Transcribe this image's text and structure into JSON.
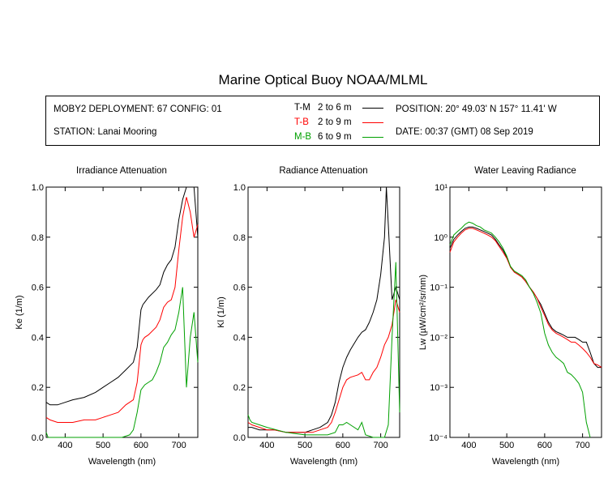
{
  "title": "Marine Optical Buoy NOAA/MLML",
  "info": {
    "deployment": "MOBY2 DEPLOYMENT: 67 CONFIG: 01",
    "station": "STATION: Lanai Mooring",
    "position": "POSITION: 20° 49.03' N   157° 11.41' W",
    "date": "DATE: 00:37 (GMT) 08 Sep 2019",
    "legend": [
      {
        "code": "T-M",
        "range": "2 to 6  m",
        "color": "#000000"
      },
      {
        "code": "T-B",
        "range": "2 to 9  m",
        "color": "#ff0000"
      },
      {
        "code": "M-B",
        "range": "6 to 9  m",
        "color": "#00a000"
      }
    ]
  },
  "chart_data": [
    {
      "type": "line",
      "title": "Irradiance Attenuation",
      "xlabel": "Wavelength (nm)",
      "ylabel": "Ke  (1/m)",
      "xlim": [
        350,
        750
      ],
      "ylim": [
        0,
        1
      ],
      "xticks": [
        "400",
        "500",
        "600",
        "700"
      ],
      "yticks": [
        "0.0",
        "0.2",
        "0.4",
        "0.6",
        "0.8",
        "1.0"
      ],
      "series": [
        {
          "code": "T-M",
          "color": "#000000",
          "x": [
            350,
            360,
            380,
            400,
            420,
            450,
            480,
            500,
            520,
            540,
            560,
            580,
            590,
            600,
            605,
            610,
            620,
            640,
            650,
            660,
            670,
            680,
            690,
            700,
            710,
            720,
            730,
            740,
            750
          ],
          "y": [
            0.14,
            0.13,
            0.13,
            0.14,
            0.15,
            0.16,
            0.18,
            0.2,
            0.22,
            0.24,
            0.27,
            0.3,
            0.36,
            0.51,
            0.53,
            0.54,
            0.56,
            0.59,
            0.61,
            0.66,
            0.69,
            0.71,
            0.76,
            0.87,
            0.95,
            1.0,
            1.0,
            1.0,
            0.8
          ]
        },
        {
          "code": "T-B",
          "color": "#ff0000",
          "x": [
            350,
            360,
            380,
            400,
            420,
            450,
            480,
            500,
            520,
            540,
            560,
            580,
            590,
            600,
            605,
            610,
            620,
            640,
            650,
            660,
            670,
            680,
            690,
            700,
            710,
            720,
            730,
            740,
            750
          ],
          "y": [
            0.08,
            0.07,
            0.06,
            0.06,
            0.06,
            0.07,
            0.07,
            0.08,
            0.09,
            0.1,
            0.13,
            0.15,
            0.22,
            0.37,
            0.39,
            0.4,
            0.41,
            0.44,
            0.47,
            0.52,
            0.54,
            0.55,
            0.6,
            0.75,
            0.88,
            0.96,
            0.9,
            0.8,
            0.85
          ]
        },
        {
          "code": "M-B",
          "color": "#00a000",
          "x": [
            350,
            355,
            360,
            370,
            380,
            400,
            450,
            500,
            530,
            550,
            570,
            580,
            590,
            600,
            610,
            620,
            630,
            640,
            650,
            660,
            670,
            680,
            690,
            700,
            710,
            720,
            730,
            740,
            750
          ],
          "y": [
            0.02,
            0.0,
            0.0,
            0.0,
            0.0,
            0.0,
            0.0,
            0.0,
            0.0,
            0.0,
            0.01,
            0.03,
            0.1,
            0.19,
            0.21,
            0.22,
            0.23,
            0.26,
            0.3,
            0.36,
            0.38,
            0.41,
            0.43,
            0.5,
            0.6,
            0.2,
            0.4,
            0.5,
            0.3
          ]
        }
      ]
    },
    {
      "type": "line",
      "title": "Radiance Attenuation",
      "xlabel": "Wavelength (nm)",
      "ylabel": "Kl  (1/m)",
      "xlim": [
        350,
        750
      ],
      "ylim": [
        0,
        1
      ],
      "xticks": [
        "400",
        "500",
        "600",
        "700"
      ],
      "yticks": [
        "0.0",
        "0.2",
        "0.4",
        "0.6",
        "0.8",
        "1.0"
      ],
      "series": [
        {
          "code": "T-M",
          "color": "#000000",
          "x": [
            350,
            360,
            380,
            400,
            420,
            450,
            480,
            500,
            520,
            540,
            560,
            570,
            580,
            590,
            600,
            610,
            620,
            640,
            650,
            660,
            670,
            680,
            690,
            700,
            710,
            715,
            720,
            730,
            740,
            750
          ],
          "y": [
            0.04,
            0.04,
            0.03,
            0.03,
            0.03,
            0.02,
            0.02,
            0.02,
            0.03,
            0.04,
            0.06,
            0.09,
            0.14,
            0.22,
            0.28,
            0.32,
            0.35,
            0.4,
            0.42,
            0.43,
            0.46,
            0.5,
            0.55,
            0.65,
            0.8,
            1.0,
            0.85,
            0.55,
            0.6,
            0.55
          ]
        },
        {
          "code": "T-B",
          "color": "#ff0000",
          "x": [
            350,
            360,
            380,
            400,
            420,
            450,
            480,
            500,
            520,
            540,
            560,
            570,
            580,
            590,
            600,
            610,
            620,
            640,
            650,
            660,
            670,
            680,
            690,
            700,
            710,
            720,
            730,
            740,
            750
          ],
          "y": [
            0.06,
            0.05,
            0.04,
            0.03,
            0.03,
            0.02,
            0.02,
            0.02,
            0.02,
            0.03,
            0.04,
            0.06,
            0.1,
            0.15,
            0.2,
            0.23,
            0.24,
            0.25,
            0.26,
            0.23,
            0.23,
            0.26,
            0.28,
            0.32,
            0.37,
            0.4,
            0.45,
            0.55,
            0.5
          ]
        },
        {
          "code": "M-B",
          "color": "#00a000",
          "x": [
            350,
            355,
            360,
            380,
            400,
            450,
            500,
            520,
            540,
            560,
            580,
            590,
            600,
            610,
            620,
            640,
            650,
            660,
            680,
            700,
            710,
            720,
            730,
            740,
            750
          ],
          "y": [
            0.09,
            0.07,
            0.06,
            0.05,
            0.04,
            0.02,
            0.01,
            0.01,
            0.01,
            0.01,
            0.02,
            0.05,
            0.05,
            0.06,
            0.05,
            0.03,
            0.06,
            0.01,
            0.0,
            0.0,
            0.0,
            0.05,
            0.4,
            0.7,
            0.1
          ]
        }
      ]
    },
    {
      "type": "line",
      "title": "Water Leaving Radiance",
      "xlabel": "Wavelength (nm)",
      "ylabel": "Lw  (µW/cm²/sr/nm)",
      "xlim": [
        350,
        750
      ],
      "ylim": [
        0.0001,
        10
      ],
      "yscale": "log",
      "xticks": [
        "400",
        "500",
        "600",
        "700"
      ],
      "yticks": [
        "10⁻⁴",
        "10⁻³",
        "10⁻²",
        "10⁻¹",
        "10⁰",
        "10¹"
      ],
      "series": [
        {
          "code": "T-M",
          "color": "#000000",
          "x": [
            350,
            360,
            370,
            380,
            390,
            400,
            410,
            420,
            430,
            440,
            450,
            460,
            470,
            480,
            490,
            500,
            510,
            520,
            530,
            540,
            550,
            560,
            570,
            580,
            590,
            600,
            610,
            620,
            630,
            640,
            650,
            660,
            670,
            680,
            690,
            700,
            710,
            720,
            730,
            740,
            750
          ],
          "y": [
            0.6,
            0.9,
            1.1,
            1.3,
            1.5,
            1.6,
            1.6,
            1.5,
            1.4,
            1.3,
            1.2,
            1.1,
            0.9,
            0.7,
            0.55,
            0.4,
            0.25,
            0.2,
            0.18,
            0.16,
            0.13,
            0.1,
            0.08,
            0.06,
            0.045,
            0.03,
            0.02,
            0.015,
            0.013,
            0.012,
            0.011,
            0.01,
            0.01,
            0.01,
            0.009,
            0.008,
            0.008,
            0.005,
            0.003,
            0.0025,
            0.0025
          ]
        },
        {
          "code": "T-B",
          "color": "#ff0000",
          "x": [
            350,
            360,
            370,
            380,
            390,
            400,
            410,
            420,
            430,
            440,
            450,
            460,
            470,
            480,
            490,
            500,
            510,
            520,
            530,
            540,
            550,
            560,
            570,
            580,
            590,
            600,
            610,
            620,
            630,
            640,
            650,
            660,
            670,
            680,
            690,
            700,
            710,
            720,
            730,
            740,
            750
          ],
          "y": [
            0.5,
            0.8,
            1.0,
            1.2,
            1.4,
            1.5,
            1.5,
            1.4,
            1.3,
            1.2,
            1.1,
            1.0,
            0.85,
            0.65,
            0.5,
            0.38,
            0.25,
            0.2,
            0.18,
            0.16,
            0.13,
            0.1,
            0.08,
            0.06,
            0.04,
            0.027,
            0.018,
            0.014,
            0.012,
            0.011,
            0.01,
            0.009,
            0.008,
            0.008,
            0.007,
            0.006,
            0.005,
            0.004,
            0.003,
            0.0028,
            0.0025
          ]
        },
        {
          "code": "M-B",
          "color": "#00a000",
          "x": [
            350,
            360,
            370,
            380,
            390,
            400,
            410,
            420,
            430,
            440,
            450,
            460,
            470,
            480,
            490,
            500,
            510,
            520,
            530,
            540,
            550,
            560,
            570,
            580,
            590,
            600,
            610,
            620,
            630,
            640,
            650,
            660,
            670,
            680,
            690,
            700,
            710,
            720
          ],
          "y": [
            0.7,
            1.1,
            1.3,
            1.5,
            1.8,
            2.0,
            1.9,
            1.7,
            1.6,
            1.4,
            1.3,
            1.2,
            1.0,
            0.8,
            0.6,
            0.42,
            0.26,
            0.21,
            0.19,
            0.17,
            0.14,
            0.1,
            0.075,
            0.05,
            0.03,
            0.012,
            0.007,
            0.005,
            0.004,
            0.0035,
            0.003,
            0.002,
            0.0018,
            0.0015,
            0.0012,
            0.0008,
            0.0002,
            0.0001
          ]
        }
      ]
    }
  ]
}
